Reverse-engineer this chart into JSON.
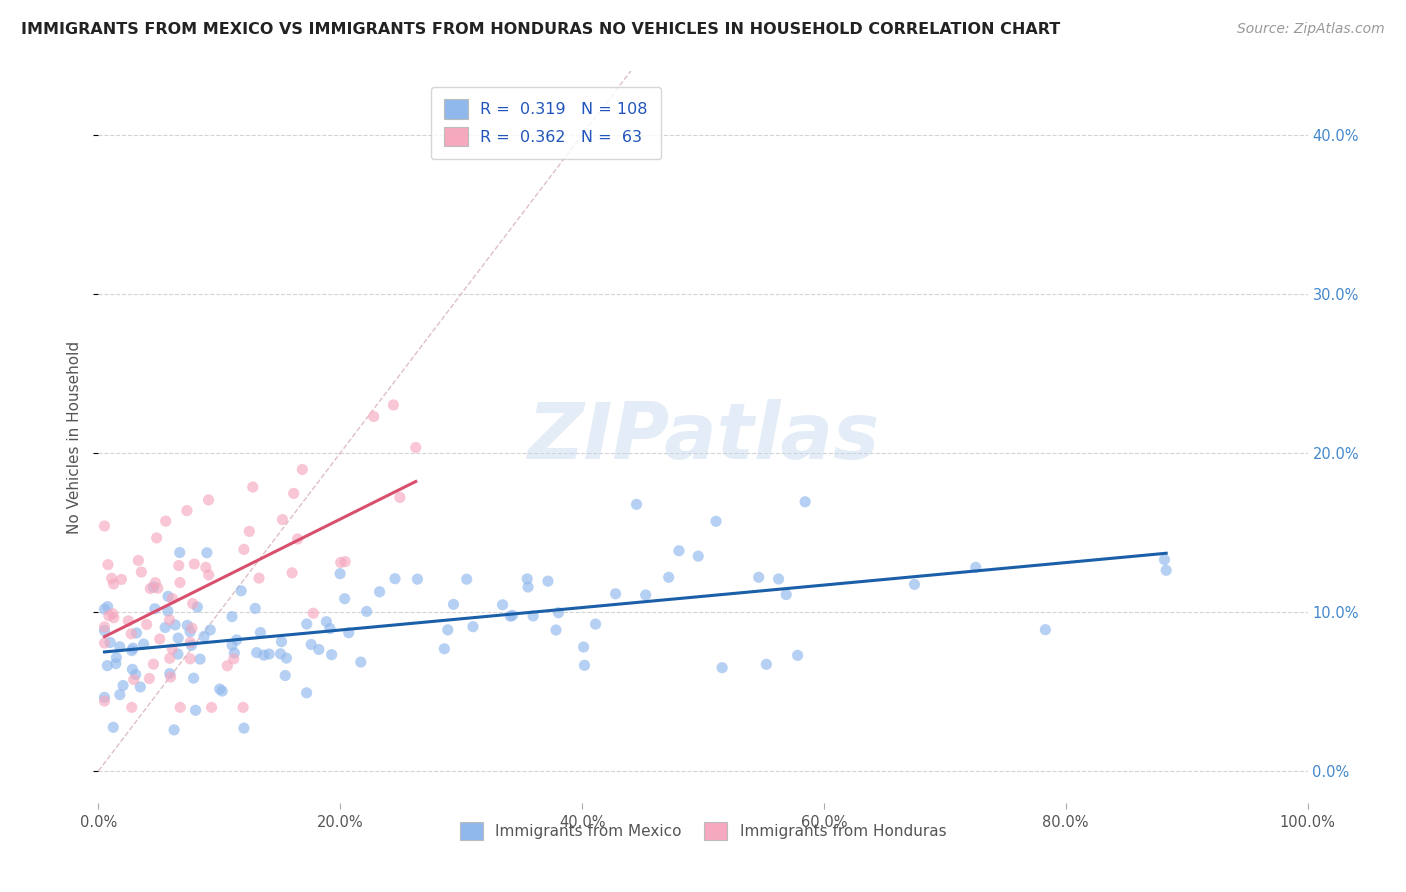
{
  "title": "IMMIGRANTS FROM MEXICO VS IMMIGRANTS FROM HONDURAS NO VEHICLES IN HOUSEHOLD CORRELATION CHART",
  "source": "Source: ZipAtlas.com",
  "ylabel": "No Vehicles in Household",
  "xlim": [
    0.0,
    1.0
  ],
  "ylim": [
    -0.02,
    0.44
  ],
  "xticks": [
    0.0,
    0.2,
    0.4,
    0.6,
    0.8,
    1.0
  ],
  "xtick_labels": [
    "0.0%",
    "20.0%",
    "40.0%",
    "60.0%",
    "80.0%",
    "100.0%"
  ],
  "yticks": [
    0.0,
    0.1,
    0.2,
    0.3,
    0.4
  ],
  "ytick_labels": [
    "0.0%",
    "10.0%",
    "20.0%",
    "30.0%",
    "40.0%"
  ],
  "legend1_label": "R =  0.319   N = 108",
  "legend2_label": "R =  0.362   N =  63",
  "mexico_color": "#90b8ed",
  "honduras_color": "#f5a8be",
  "mexico_line_color": "#1a5fa8",
  "honduras_line_color": "#d94f6e",
  "diagonal_color": "#dbb8be",
  "watermark_text": "ZIPatlas",
  "background_color": "#ffffff",
  "grid_color": "#c8c8c8",
  "title_color": "#222222",
  "source_color": "#999999",
  "ytick_color": "#4488cc",
  "xtick_color": "#555555",
  "ylabel_color": "#555555",
  "bottom_legend_color": "#555555"
}
